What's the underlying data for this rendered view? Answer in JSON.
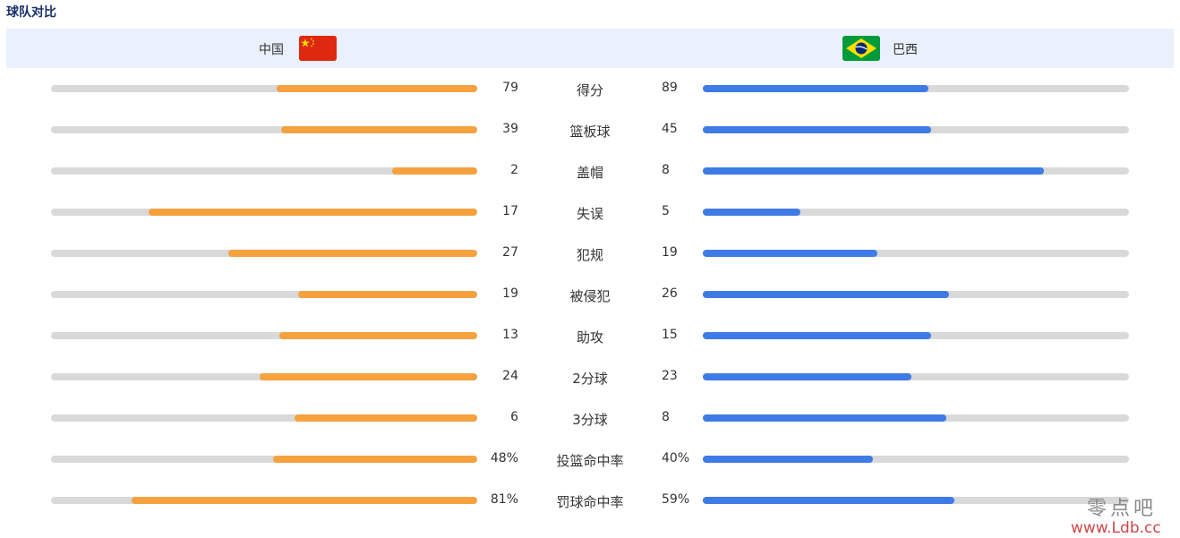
{
  "section_title": "球队对比",
  "teams": {
    "home": {
      "name": "中国",
      "flag": "china-flag-icon",
      "color": "#f4a13e"
    },
    "away": {
      "name": "巴西",
      "flag": "brazil-flag-icon",
      "color": "#3f7be5"
    }
  },
  "stats": [
    {
      "label": "得分",
      "home": "79",
      "away": "89",
      "home_fill": 0.47,
      "away_fill": 0.53
    },
    {
      "label": "篮板球",
      "home": "39",
      "away": "45",
      "home_fill": 0.46,
      "away_fill": 0.535
    },
    {
      "label": "盖帽",
      "home": "2",
      "away": "8",
      "home_fill": 0.2,
      "away_fill": 0.8
    },
    {
      "label": "失误",
      "home": "17",
      "away": "5",
      "home_fill": 0.77,
      "away_fill": 0.23
    },
    {
      "label": "犯规",
      "home": "27",
      "away": "19",
      "home_fill": 0.585,
      "away_fill": 0.41
    },
    {
      "label": "被侵犯",
      "home": "19",
      "away": "26",
      "home_fill": 0.42,
      "away_fill": 0.578
    },
    {
      "label": "助攻",
      "home": "13",
      "away": "15",
      "home_fill": 0.464,
      "away_fill": 0.535
    },
    {
      "label": "2分球",
      "home": "24",
      "away": "23",
      "home_fill": 0.51,
      "away_fill": 0.489
    },
    {
      "label": "3分球",
      "home": "6",
      "away": "8",
      "home_fill": 0.428,
      "away_fill": 0.571
    },
    {
      "label": "投篮命中率",
      "home": "48%",
      "away": "40%",
      "home_fill": 0.48,
      "away_fill": 0.4
    },
    {
      "label": "罚球命中率",
      "home": "81%",
      "away": "59%",
      "home_fill": 0.81,
      "away_fill": 0.59
    }
  ],
  "watermark": {
    "text": "零点吧",
    "url": "www.Ldb.cc"
  }
}
